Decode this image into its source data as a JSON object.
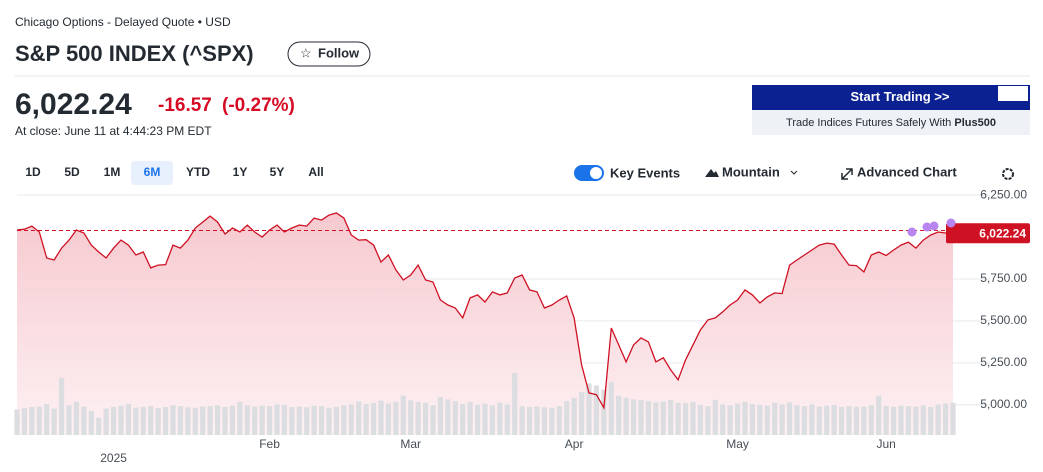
{
  "header": {
    "exchange": "Chicago Options - Delayed Quote • USD",
    "title": "S&P 500 INDEX (^SPX)",
    "follow": "Follow"
  },
  "quote": {
    "price": "6,022.24",
    "change": "-16.57",
    "change_pct": "(-0.27%)",
    "close_time": "At close: June 11 at 4:44:23 PM EDT"
  },
  "ad": {
    "button": "Start Trading >>",
    "text": "Trade Indices Futures Safely With ",
    "brand": "Plus500"
  },
  "ranges": [
    "1D",
    "5D",
    "1M",
    "6M",
    "YTD",
    "1Y",
    "5Y",
    "All"
  ],
  "selected_range": 3,
  "toolbar": {
    "key_events": "Key Events",
    "mountain": "Mountain",
    "advanced": "Advanced Chart"
  },
  "chart_data": {
    "type": "area",
    "color": "#cf1124",
    "values": [
      6042,
      6047,
      6065,
      6030,
      5875,
      5863,
      5934,
      5982,
      6042,
      6024,
      5952,
      5911,
      5875,
      5934,
      5982,
      5952,
      5893,
      5911,
      5816,
      5833,
      5836,
      5952,
      5934,
      5982,
      6054,
      6089,
      6125,
      6089,
      6018,
      6054,
      6030,
      6071,
      6030,
      6000,
      6042,
      6071,
      6030,
      6054,
      6071,
      6065,
      6113,
      6101,
      6131,
      6143,
      6113,
      6012,
      5982,
      5984,
      5952,
      5851,
      5893,
      5804,
      5744,
      5774,
      5833,
      5744,
      5732,
      5625,
      5595,
      5577,
      5518,
      5637,
      5655,
      5613,
      5673,
      5655,
      5667,
      5756,
      5774,
      5685,
      5673,
      5577,
      5595,
      5625,
      5649,
      5518,
      5238,
      5071,
      5060,
      4982,
      5458,
      5357,
      5256,
      5357,
      5399,
      5375,
      5256,
      5280,
      5208,
      5149,
      5268,
      5357,
      5446,
      5506,
      5518,
      5554,
      5595,
      5625,
      5685,
      5655,
      5607,
      5643,
      5667,
      5663,
      5833,
      5863,
      5893,
      5923,
      5952,
      5964,
      5958,
      5893,
      5833,
      5830,
      5792,
      5893,
      5911,
      5890,
      5923,
      5952,
      5970,
      5934,
      5982,
      6012,
      6030,
      6024,
      6022.24
    ],
    "volume": [
      6.2,
      6.5,
      6.8,
      6.9,
      7.5,
      6.4,
      13.8,
      7.2,
      8.0,
      6.9,
      5.8,
      4.2,
      6.4,
      6.8,
      7.1,
      7.5,
      6.6,
      6.8,
      7.0,
      6.5,
      6.8,
      7.2,
      7.0,
      6.7,
      6.6,
      6.9,
      7.0,
      7.2,
      6.8,
      7.1,
      8.0,
      7.2,
      6.9,
      7.1,
      7.0,
      7.4,
      7.3,
      6.8,
      6.9,
      6.7,
      7.1,
      7.0,
      6.6,
      6.8,
      7.2,
      7.4,
      8.1,
      7.5,
      7.8,
      8.3,
      7.6,
      8.0,
      9.5,
      8.4,
      8.0,
      7.8,
      7.2,
      9.2,
      8.6,
      8.2,
      7.5,
      8.0,
      7.3,
      7.6,
      7.2,
      7.8,
      7.4,
      15.0,
      7.0,
      6.8,
      6.9,
      6.7,
      6.6,
      7.0,
      8.2,
      9.0,
      10.4,
      12.5,
      12.0,
      11.0,
      12.8,
      9.5,
      9.0,
      8.6,
      8.5,
      8.2,
      7.9,
      8.1,
      8.5,
      7.8,
      7.7,
      8.0,
      7.3,
      7.0,
      8.5,
      7.4,
      7.2,
      7.6,
      8.0,
      7.5,
      7.3,
      7.1,
      7.8,
      7.4,
      7.9,
      7.2,
      7.0,
      7.4,
      6.9,
      7.1,
      7.3,
      6.8,
      7.0,
      6.8,
      6.9,
      7.2,
      9.5,
      7.0,
      6.8,
      7.1,
      7.0,
      6.9,
      7.2,
      6.8,
      7.4,
      7.6,
      7.8
    ],
    "reference_line": 6038.81,
    "xlim": [
      0,
      126
    ],
    "xticks": [
      {
        "value": 13,
        "label": "2025"
      },
      {
        "value": 34,
        "label": "Feb"
      },
      {
        "value": 53,
        "label": "Mar"
      },
      {
        "value": 75,
        "label": "Apr"
      },
      {
        "value": 97,
        "label": "May"
      },
      {
        "value": 117,
        "label": "Jun"
      }
    ],
    "ylim": [
      4820,
      6340
    ],
    "yticks": [
      {
        "value": 5000,
        "label": "5,000.00"
      },
      {
        "value": 5250,
        "label": "5,250.00"
      },
      {
        "value": 5500,
        "label": "5,500.00"
      },
      {
        "value": 5750,
        "label": "5,750.00"
      },
      {
        "value": 6250,
        "label": "6,250.00"
      }
    ],
    "grid": true
  }
}
